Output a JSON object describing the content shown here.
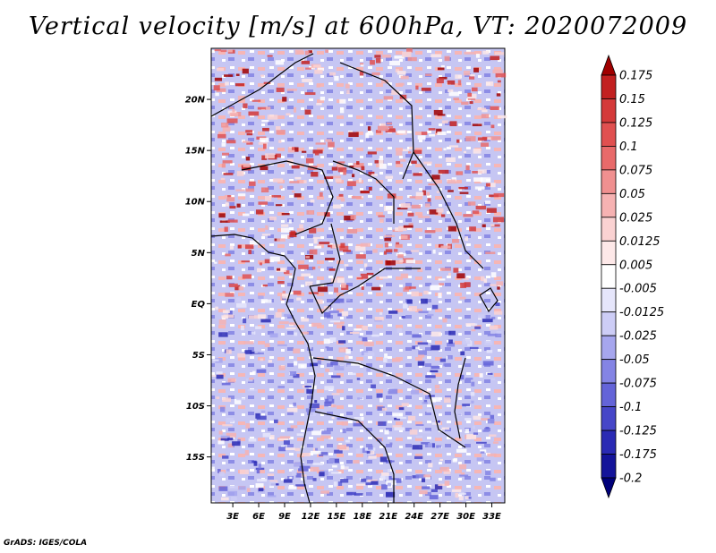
{
  "chart_data": {
    "type": "heatmap",
    "title": "Vertical velocity [m/s] at 600hPa, VT: 2020072009",
    "x_ticks": [
      "3E",
      "6E",
      "9E",
      "12E",
      "15E",
      "18E",
      "21E",
      "24E",
      "27E",
      "30E",
      "33E"
    ],
    "y_ticks": [
      "20N",
      "15N",
      "10N",
      "5N",
      "EQ",
      "5S",
      "10S",
      "15S"
    ],
    "x_values": [
      3,
      6,
      9,
      12,
      15,
      18,
      21,
      24,
      27,
      30,
      33
    ],
    "y_values": [
      20,
      15,
      10,
      5,
      0,
      -5,
      -10,
      -15
    ],
    "xlim": [
      0.5,
      34.5
    ],
    "ylim": [
      -19.5,
      25
    ],
    "colorbar": {
      "levels": [
        "0.175",
        "0.15",
        "0.125",
        "0.1",
        "0.075",
        "0.05",
        "0.025",
        "0.0125",
        "0.005",
        "-0.005",
        "-0.0125",
        "-0.025",
        "-0.05",
        "-0.075",
        "-0.1",
        "-0.125",
        "-0.175",
        "-0.2"
      ],
      "colors": [
        "#a00000",
        "#c22020",
        "#d43a3a",
        "#e05050",
        "#e86a6a",
        "#f09090",
        "#f6b2b2",
        "#fad2d2",
        "#fde8e8",
        "#ffffff",
        "#e6e6fb",
        "#cdcdf6",
        "#a6a6ee",
        "#8484e4",
        "#6464d8",
        "#4646c8",
        "#2a2ab4",
        "#14149a",
        "#00007a"
      ]
    }
  },
  "footer": "GrADS: IGES/COLA"
}
